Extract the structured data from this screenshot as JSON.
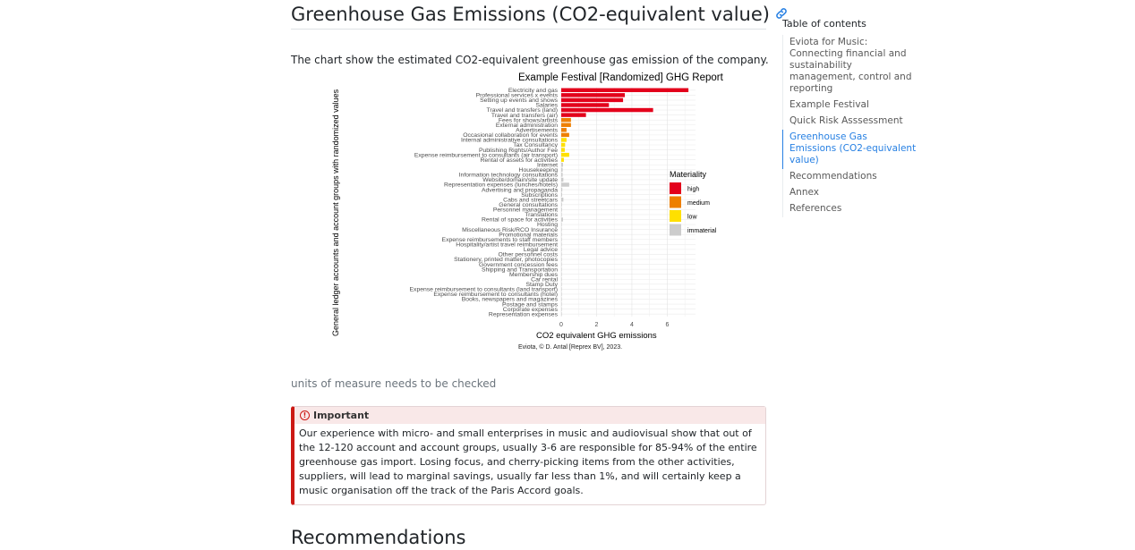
{
  "section": {
    "title": "Greenhouse Gas Emissions (CO2-equivalent value)",
    "anchor_icon": "link-icon",
    "intro": "The chart show the estimated CO2-equivalent greenhouse gas emission of the company.",
    "caption": "units of measure needs to be checked"
  },
  "callout": {
    "type": "important",
    "icon": "exclamation-circle-icon",
    "accent_color": "#cc1914",
    "title": "Important",
    "body": "Our experience with micro- and small enterprises in music and audiovisual show that out of the 12-120 account and account groups, usually 3-6 are responsible for 85-94% of the entire greenhouse gas import. Losing focus, and cherry-picking items from the other activities, suppliers, will lead to marginal savings, usually far less than 1%, and will certainly keep a music organisation off the track of the Paris Accord goals."
  },
  "next_section": {
    "title": "Recommendations"
  },
  "toc": {
    "title": "Table of contents",
    "items": [
      {
        "label": "Eviota for Music: Connecting financial and sustainability management, control and reporting",
        "active": false
      },
      {
        "label": "Example Festival",
        "active": false
      },
      {
        "label": "Quick Risk Asssessment",
        "active": false
      },
      {
        "label": "Greenhouse Gas Emissions (CO2-equivalent value)",
        "active": true
      },
      {
        "label": "Recommendations",
        "active": false
      },
      {
        "label": "Annex",
        "active": false
      },
      {
        "label": "References",
        "active": false
      }
    ]
  },
  "chart_data": {
    "type": "bar",
    "orientation": "horizontal",
    "title": "Example Festival [Randomized] GHG Report",
    "xlabel": "CO2 equivalent GHG emissions",
    "ylabel": "General ledger accounts and account groups with randomized values",
    "credit": "Eviota, © D. Antal [Reprex BV], 2023.",
    "xlim": [
      0,
      7.6
    ],
    "xticks": [
      0,
      2,
      4,
      6
    ],
    "grid": true,
    "legend_title": "Materiality",
    "legend_position": "right",
    "legend": [
      {
        "key": "high",
        "label": "high",
        "color": "#e3001b"
      },
      {
        "key": "medium",
        "label": "medium",
        "color": "#ee7f00"
      },
      {
        "key": "low",
        "label": "low",
        "color": "#ffe000"
      },
      {
        "key": "immaterial",
        "label": "immaterial",
        "color": "#cccccc"
      }
    ],
    "categories": [
      "Electricity and gas",
      "Professional services x events",
      "Setting up events and shows",
      "Salaries",
      "Travel and transfers (land)",
      "Travel and transfers (air)",
      "Fees for shows/artists",
      "External administration",
      "Advertisements",
      "Occasional collaboration for events",
      "Internal administrative consultations",
      "Tax Consultancy",
      "Publishing Rights/Author Fee",
      "Expense reimbursement to consultants (air transport)",
      "Rental of assets for activities",
      "Internet",
      "Housekeeping",
      "Information technology consultations",
      "Website/domain/site update",
      "Representation expenses (lunches/hotels)",
      "Advertising and propaganda",
      "Subscriptions",
      "Cabs and streetcars",
      "General consultations",
      "Personnel management",
      "Translations",
      "Rental of space for activities",
      "Hosting",
      "Miscellaneous Risk/RCO Insurance",
      "Promotional materials",
      "Expense reimbursements to staff members",
      "Hospitality/artist travel reimbursement",
      "Legal advice",
      "Other personnel costs",
      "Stationery, printed matter, photocopies",
      "Government concession fees",
      "Shipping and Transportation",
      "Membership dues",
      "Car rental",
      "Stamp Duty",
      "Expense reimbursement to consultants (land transport)",
      "Expense reimbursement to consultants (hotel)",
      "Books, newspapers and magazines",
      "Postage and stamps",
      "Corporate expenses",
      "Representation expenses"
    ],
    "values": [
      7.2,
      3.6,
      3.5,
      2.7,
      5.2,
      1.4,
      0.55,
      0.55,
      0.3,
      0.45,
      0.3,
      0.22,
      0.2,
      0.45,
      0.15,
      0.1,
      0.08,
      0.08,
      0.12,
      0.45,
      0.06,
      0.05,
      0.12,
      0.04,
      0.04,
      0.03,
      0.1,
      0.03,
      0.03,
      0.02,
      0.02,
      0.02,
      0.02,
      0.02,
      0.02,
      0.02,
      0.01,
      0.01,
      0.01,
      0.01,
      0.01,
      0.01,
      0.01,
      0.01,
      0.01,
      0.01
    ],
    "materiality": [
      "high",
      "high",
      "high",
      "high",
      "high",
      "high",
      "medium",
      "medium",
      "medium",
      "medium",
      "low",
      "low",
      "low",
      "low",
      "low",
      "immaterial",
      "immaterial",
      "immaterial",
      "immaterial",
      "immaterial",
      "immaterial",
      "immaterial",
      "immaterial",
      "immaterial",
      "immaterial",
      "immaterial",
      "immaterial",
      "immaterial",
      "immaterial",
      "immaterial",
      "immaterial",
      "immaterial",
      "immaterial",
      "immaterial",
      "immaterial",
      "immaterial",
      "immaterial",
      "immaterial",
      "immaterial",
      "immaterial",
      "immaterial",
      "immaterial",
      "immaterial",
      "immaterial",
      "immaterial",
      "immaterial"
    ]
  }
}
